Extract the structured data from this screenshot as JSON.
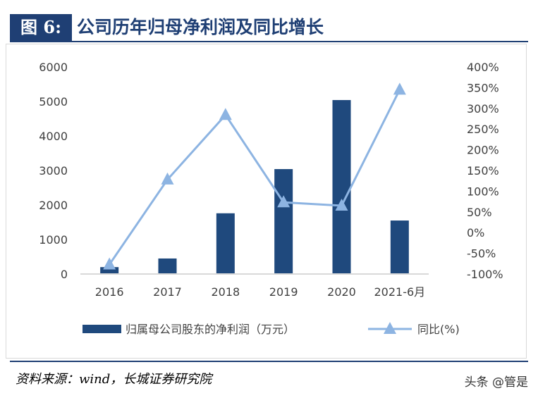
{
  "header": {
    "figure_label": "图 6:",
    "title": "公司历年归母净利润及同比增长"
  },
  "footer": {
    "source": "资料来源：wind，长城证券研究院",
    "watermark": "头条 @管是"
  },
  "chart_data": {
    "type": "bar+line",
    "categories": [
      "2016",
      "2017",
      "2018",
      "2019",
      "2020",
      "2021-6月"
    ],
    "series": [
      {
        "name": "归属母公司股东的净利润（万元）",
        "type": "bar",
        "axis": "left",
        "color": "#1f497d",
        "values": [
          200,
          450,
          1760,
          3040,
          5040,
          1550
        ]
      },
      {
        "name": "同比(%)",
        "type": "line",
        "axis": "right",
        "color": "#8db4e2",
        "marker": "triangle",
        "values": [
          -77,
          128,
          284,
          73,
          65,
          345
        ]
      }
    ],
    "y_left": {
      "ylim": [
        0,
        6000
      ],
      "ticks": [
        "0",
        "1000",
        "2000",
        "3000",
        "4000",
        "5000",
        "6000"
      ]
    },
    "y_right": {
      "ylim": [
        -100,
        400
      ],
      "ticks": [
        "-100%",
        "-50%",
        "0%",
        "50%",
        "100%",
        "150%",
        "200%",
        "250%",
        "300%",
        "350%",
        "400%"
      ]
    },
    "grid": false,
    "legend_placement": "bottom"
  }
}
